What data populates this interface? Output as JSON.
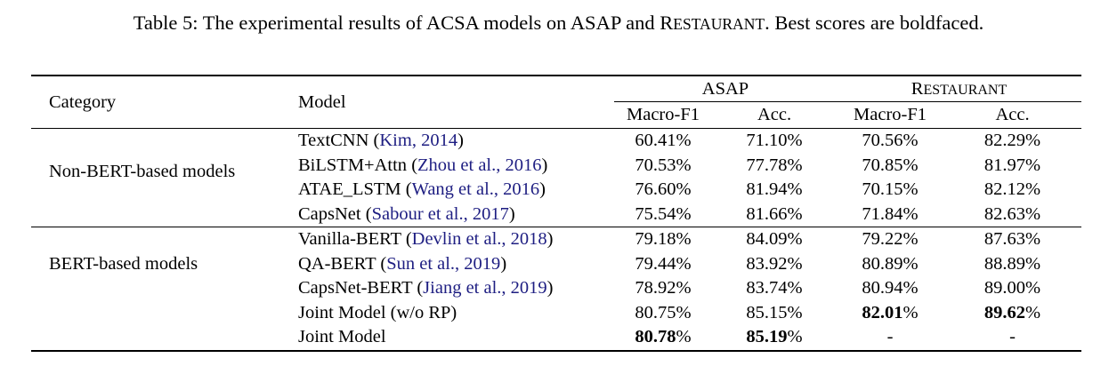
{
  "caption": {
    "prefix": "Table 5: The experimental results of ACSA models on ",
    "dataset1": "ASAP",
    "connector": " and ",
    "dataset2": "Restaurant",
    "suffix": ". Best scores are boldfaced."
  },
  "colors": {
    "citation": "#1e1e82",
    "text": "#000000",
    "rule": "#000000"
  },
  "table": {
    "headers": {
      "category": "Category",
      "model": "Model",
      "group1": "ASAP",
      "group2": "Restaurant",
      "sub": [
        "Macro-F1",
        "Acc.",
        "Macro-F1",
        "Acc."
      ]
    },
    "groups": [
      {
        "category": "Non-BERT-based models",
        "rows": [
          {
            "name": "TextCNN",
            "cite": "Kim, 2014",
            "values": [
              "60.41%",
              "71.10%",
              "70.56%",
              "82.29%"
            ],
            "bold": [
              false,
              false,
              false,
              false
            ]
          },
          {
            "name": "BiLSTM+Attn",
            "cite": "Zhou et al., 2016",
            "values": [
              "70.53%",
              "77.78%",
              "70.85%",
              "81.97%"
            ],
            "bold": [
              false,
              false,
              false,
              false
            ]
          },
          {
            "name": "ATAE_LSTM",
            "cite": "Wang et al., 2016",
            "values": [
              "76.60%",
              "81.94%",
              "70.15%",
              "82.12%"
            ],
            "bold": [
              false,
              false,
              false,
              false
            ]
          },
          {
            "name": "CapsNet",
            "cite": "Sabour et al., 2017",
            "values": [
              "75.54%",
              "81.66%",
              "71.84%",
              "82.63%"
            ],
            "bold": [
              false,
              false,
              false,
              false
            ]
          }
        ]
      },
      {
        "category": "BERT-based models",
        "rows": [
          {
            "name": "Vanilla-BERT",
            "cite": "Devlin et al., 2018",
            "values": [
              "79.18%",
              "84.09%",
              "79.22%",
              "87.63%"
            ],
            "bold": [
              false,
              false,
              false,
              false
            ]
          },
          {
            "name": "QA-BERT",
            "cite": "Sun et al., 2019",
            "values": [
              "79.44%",
              "83.92%",
              "80.89%",
              "88.89%"
            ],
            "bold": [
              false,
              false,
              false,
              false
            ]
          },
          {
            "name": "CapsNet-BERT",
            "cite": "Jiang et al., 2019",
            "values": [
              "78.92%",
              "83.74%",
              "80.94%",
              "89.00%"
            ],
            "bold": [
              false,
              false,
              false,
              false
            ]
          },
          {
            "name": "Joint Model (w/o RP)",
            "cite": null,
            "values": [
              "80.75%",
              "85.15%",
              "82.01%",
              "89.62%"
            ],
            "bold": [
              false,
              false,
              true,
              true
            ]
          },
          {
            "name": "Joint Model",
            "cite": null,
            "values": [
              "80.78%",
              "85.19%",
              "-",
              "-"
            ],
            "bold": [
              true,
              true,
              false,
              false
            ]
          }
        ]
      }
    ]
  }
}
